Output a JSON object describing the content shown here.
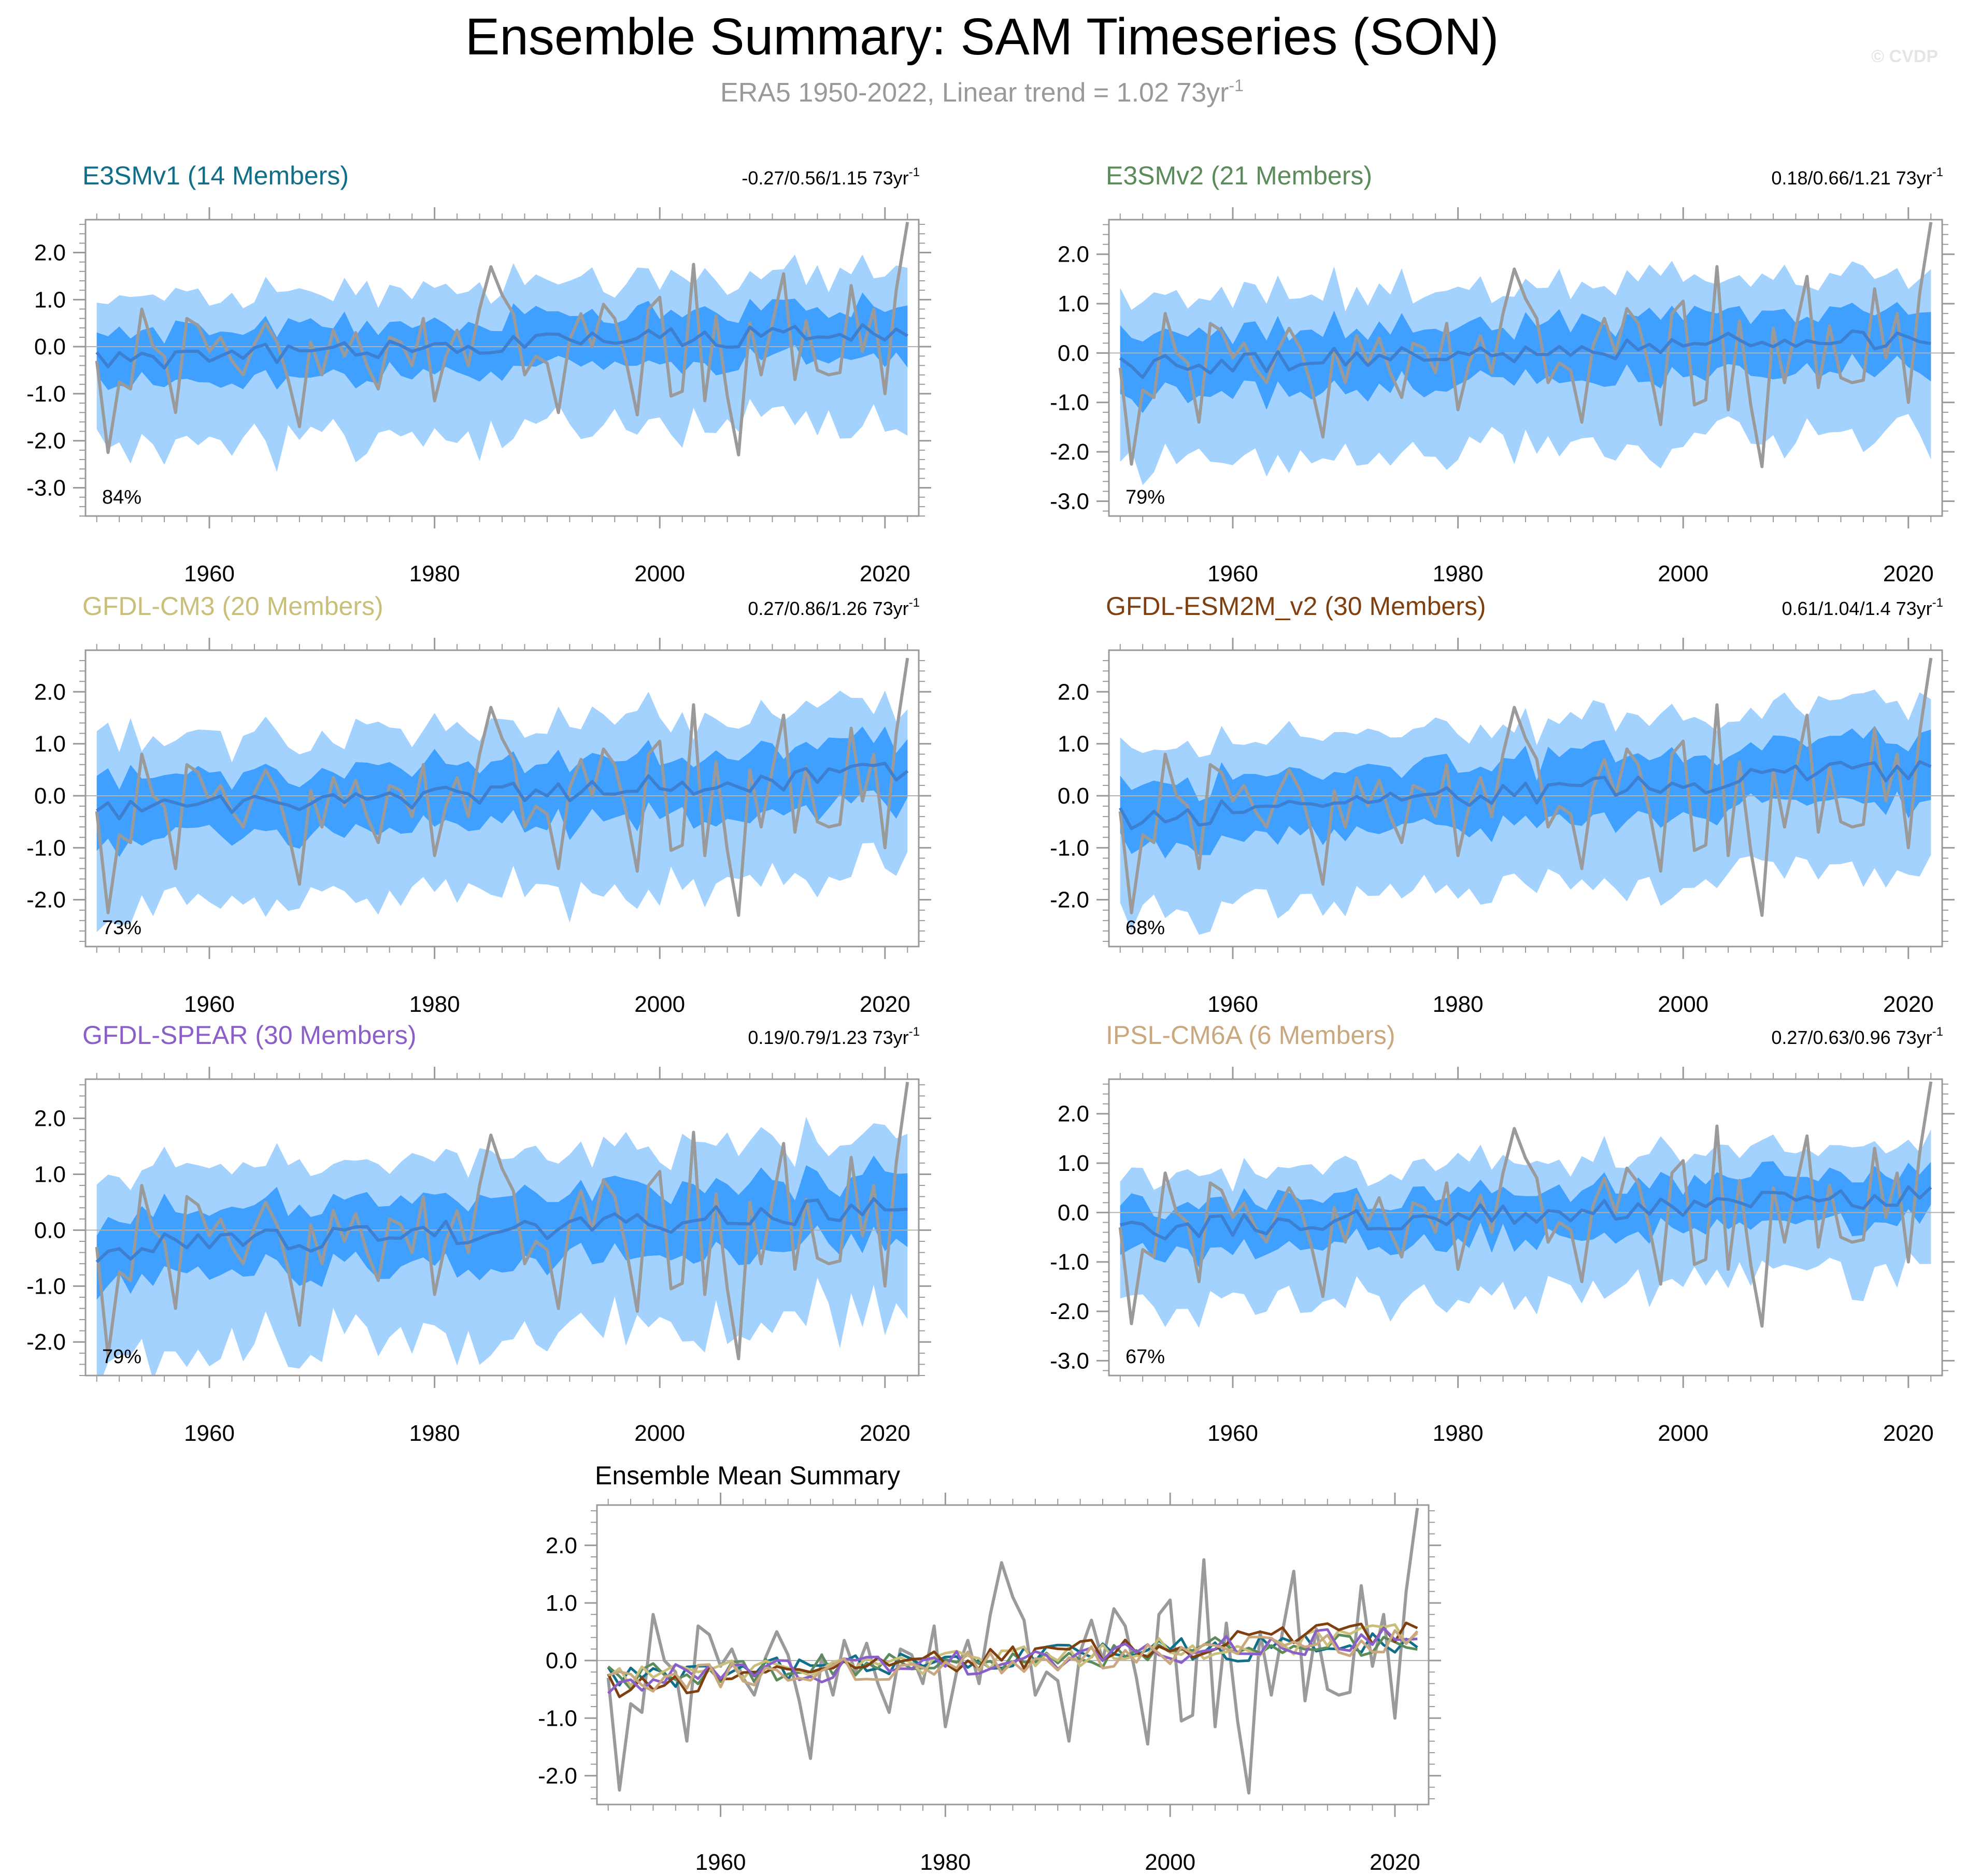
{
  "figure": {
    "title": "Ensemble Summary: SAM Timeseries (SON)",
    "subtitle": "ERA5 1950-2022, Linear trend = 1.02 73yr",
    "subtitle_sup": "-1",
    "watermark": "© CVDP"
  },
  "colors": {
    "outer_band": "#a3d2ff",
    "inner_band": "#3fa0ff",
    "mean_line": "#3d7fd1",
    "obs_line": "#9a9a9a",
    "zero_line": "#b0b0b0",
    "axis": "#999999",
    "e3smv1": "#116e8a",
    "e3smv2": "#5b8a5b",
    "gfdl_cm3": "#c9bf7a",
    "gfdl_esm2m": "#7f3f0e",
    "gfdl_spear": "#8a5fc9",
    "ipsl": "#c9a87f",
    "watermark": "#e5e5e5"
  },
  "chart_data": [
    {
      "type": "line",
      "id": "e3smv1",
      "title": "E3SMv1 (14 Members)",
      "trend_text": "-0.27/0.56/1.15 73yr",
      "trend_sup": "-1",
      "pct": "84%",
      "seed": 11,
      "xlim": [
        1949,
        2023
      ],
      "ylim": [
        -3.6,
        2.7
      ],
      "xticks": [
        "1960",
        "1980",
        "2000",
        "2020"
      ],
      "yticks": [
        "2.0",
        "1.0",
        "0.0",
        "-1.0",
        "-2.0",
        "-3.0"
      ],
      "mean_start": -0.3,
      "mean_end": 0.35,
      "inner_hw": 0.55,
      "outer_hw": 1.3
    },
    {
      "type": "line",
      "id": "e3smv2",
      "title": "E3SMv2 (21 Members)",
      "trend_text": "0.18/0.66/1.21 73yr",
      "trend_sup": "-1",
      "pct": "79%",
      "seed": 23,
      "xlim": [
        1949,
        2023
      ],
      "ylim": [
        -3.3,
        2.7
      ],
      "xticks": [
        "1960",
        "1980",
        "2000",
        "2020"
      ],
      "yticks": [
        "2.0",
        "1.0",
        "0.0",
        "-1.0",
        "-2.0",
        "-3.0"
      ],
      "mean_start": -0.3,
      "mean_end": 0.35,
      "inner_hw": 0.6,
      "outer_hw": 1.25
    },
    {
      "type": "line",
      "id": "gfdl_cm3",
      "title": "GFDL-CM3 (20 Members)",
      "trend_text": "0.27/0.86/1.26 73yr",
      "trend_sup": "-1",
      "pct": "73%",
      "seed": 37,
      "xlim": [
        1949,
        2023
      ],
      "ylim": [
        -2.9,
        2.8
      ],
      "xticks": [
        "1960",
        "1980",
        "2000",
        "2020"
      ],
      "yticks": [
        "2.0",
        "1.0",
        "0.0",
        "-1.0",
        "-2.0"
      ],
      "mean_start": -0.35,
      "mean_end": 0.45,
      "inner_hw": 0.6,
      "outer_hw": 1.25
    },
    {
      "type": "line",
      "id": "gfdl_esm2m",
      "title": "GFDL-ESM2M_v2 (30 Members)",
      "trend_text": "0.61/1.04/1.4 73yr",
      "trend_sup": "-1",
      "pct": "68%",
      "seed": 41,
      "xlim": [
        1949,
        2023
      ],
      "ylim": [
        -2.9,
        2.8
      ],
      "xticks": [
        "1960",
        "1980",
        "2000",
        "2020"
      ],
      "yticks": [
        "2.0",
        "1.0",
        "0.0",
        "-1.0",
        "-2.0"
      ],
      "mean_start": -0.45,
      "mean_end": 0.55,
      "inner_hw": 0.6,
      "outer_hw": 1.2
    },
    {
      "type": "line",
      "id": "gfdl_spear",
      "title": "GFDL-SPEAR (30 Members)",
      "trend_text": "0.19/0.79/1.23 73yr",
      "trend_sup": "-1",
      "pct": "79%",
      "seed": 53,
      "xlim": [
        1949,
        2023
      ],
      "ylim": [
        -2.6,
        2.7
      ],
      "xticks": [
        "1960",
        "1980",
        "2000",
        "2020"
      ],
      "yticks": [
        "2.0",
        "1.0",
        "0.0",
        "-1.0",
        "-2.0"
      ],
      "mean_start": -0.35,
      "mean_end": 0.4,
      "inner_hw": 0.6,
      "outer_hw": 1.25
    },
    {
      "type": "line",
      "id": "ipsl",
      "title": "IPSL-CM6A (6 Members)",
      "trend_text": "0.27/0.63/0.96 73yr",
      "trend_sup": "-1",
      "pct": "67%",
      "seed": 67,
      "xlim": [
        1949,
        2023
      ],
      "ylim": [
        -3.3,
        2.7
      ],
      "xticks": [
        "1960",
        "1980",
        "2000",
        "2020"
      ],
      "yticks": [
        "2.0",
        "1.0",
        "0.0",
        "-1.0",
        "-2.0",
        "-3.0"
      ],
      "mean_start": -0.35,
      "mean_end": 0.35,
      "inner_hw": 0.5,
      "outer_hw": 1.0
    },
    {
      "type": "line",
      "id": "summary",
      "title": "Ensemble Mean Summary",
      "xlim": [
        1949,
        2023
      ],
      "ylim": [
        -2.5,
        2.7
      ],
      "xticks": [
        "1960",
        "1980",
        "2000",
        "2020"
      ],
      "yticks": [
        "2.0",
        "1.0",
        "0.0",
        "-1.0",
        "-2.0"
      ],
      "series": [
        {
          "name": "E3SMv1",
          "color_key": "e3smv1",
          "seed": 11,
          "mean_start": -0.3,
          "mean_end": 0.35
        },
        {
          "name": "E3SMv2",
          "color_key": "e3smv2",
          "seed": 23,
          "mean_start": -0.3,
          "mean_end": 0.35
        },
        {
          "name": "GFDL-CM3",
          "color_key": "gfdl_cm3",
          "seed": 37,
          "mean_start": -0.35,
          "mean_end": 0.45
        },
        {
          "name": "GFDL-ESM2M_v2",
          "color_key": "gfdl_esm2m",
          "seed": 41,
          "mean_start": -0.45,
          "mean_end": 0.55
        },
        {
          "name": "GFDL-SPEAR",
          "color_key": "gfdl_spear",
          "seed": 53,
          "mean_start": -0.35,
          "mean_end": 0.4
        },
        {
          "name": "IPSL-CM6A",
          "color_key": "ipsl",
          "seed": 67,
          "mean_start": -0.35,
          "mean_end": 0.35
        }
      ]
    }
  ],
  "obs": {
    "name": "ERA5",
    "years": [
      1950,
      1951,
      1952,
      1953,
      1954,
      1955,
      1956,
      1957,
      1958,
      1959,
      1960,
      1961,
      1962,
      1963,
      1964,
      1965,
      1966,
      1967,
      1968,
      1969,
      1970,
      1971,
      1972,
      1973,
      1974,
      1975,
      1976,
      1977,
      1978,
      1979,
      1980,
      1981,
      1982,
      1983,
      1984,
      1985,
      1986,
      1987,
      1988,
      1989,
      1990,
      1991,
      1992,
      1993,
      1994,
      1995,
      1996,
      1997,
      1998,
      1999,
      2000,
      2001,
      2002,
      2003,
      2004,
      2005,
      2006,
      2007,
      2008,
      2009,
      2010,
      2011,
      2012,
      2013,
      2014,
      2015,
      2016,
      2017,
      2018,
      2019,
      2020,
      2021,
      2022
    ],
    "values": [
      -0.3,
      -2.25,
      -0.75,
      -0.9,
      0.8,
      0.0,
      -0.2,
      -1.4,
      0.6,
      0.45,
      -0.1,
      0.2,
      -0.3,
      -0.6,
      0.05,
      0.5,
      0.1,
      -0.7,
      -1.7,
      0.1,
      -0.6,
      0.35,
      -0.2,
      0.3,
      -0.4,
      -0.9,
      0.2,
      0.1,
      -0.4,
      0.6,
      -1.15,
      -0.2,
      0.35,
      -0.4,
      0.8,
      1.7,
      1.1,
      0.7,
      -0.6,
      -0.2,
      -0.35,
      -1.4,
      0.15,
      0.7,
      0.0,
      0.9,
      0.6,
      -0.3,
      -1.45,
      0.8,
      1.05,
      -1.05,
      -0.95,
      1.75,
      -1.15,
      0.65,
      -1.05,
      -2.3,
      0.5,
      -0.6,
      0.5,
      1.55,
      -0.7,
      0.55,
      -0.5,
      -0.6,
      -0.55,
      1.3,
      -0.1,
      0.8,
      -1.0,
      1.2,
      2.65
    ]
  }
}
